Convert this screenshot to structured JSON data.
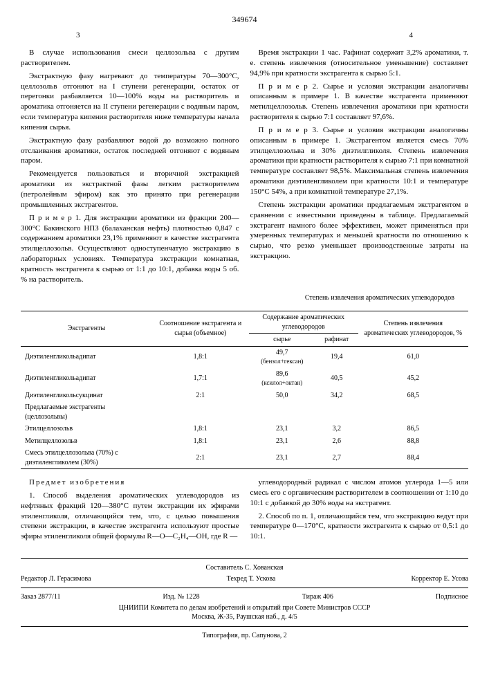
{
  "patent_number": "349674",
  "page_left": "3",
  "page_right": "4",
  "left_col": {
    "p1": "В случае использования смеси целлозольва с другим растворителем.",
    "p2": "Экстрактную фазу нагревают до температуры 70—300°С, целлозольв отгоняют на I ступени регенерации, остаток от перегонки разбавляется 10—100% воды на растворитель и ароматика отгоняется на II ступени регенерации с водяным паром, если температура кипения растворителя ниже температуры начала кипения сырья.",
    "p3": "Экстрактную фазу разбавляют водой до возможно полного отслаивания ароматики, остаток последней отгоняют с водяным паром.",
    "p4": "Рекомендуется пользоваться и вторичной экстракцией ароматики из экстрактной фазы легким растворителем (петролейным эфиром) как это принято при регенерации промышленных экстрагентов.",
    "p5": "П р и м е р 1. Для экстракции ароматики из фракции 200—300°С Бакинского НПЗ (балаханская нефть) плотностью 0,847 с содержанием ароматики 23,1% применяют в качестве экстрагента этилцеллозольв. Осуществляют одноступенчатую экстракцию в лабораторных условиях. Температура экстракции комнатная, кратность экстрагента к сырью от 1:1 до 10:1, добавка воды 5 об. % на растворитель."
  },
  "right_col": {
    "p1": "Время экстракции 1 час. Рафинат содержит 3,2% ароматики, т. е. степень извлечения (относительное уменьшение) составляет 94,9% при кратности экстрагента к сырью 5:1.",
    "p2": "П р и м е р 2. Сырье и условия экстракции аналогичны описанным в примере 1. В качестве экстрагента применяют метилцеллозольв. Степень извлечения ароматики при кратности растворителя к сырью 7:1 составляет 97,6%.",
    "p3": "П р и м е р 3. Сырье и условия экстракции аналогичны описанным в примере 1. Экстрагентом является смесь 70% этилцеллозольва и 30% диэтилгликоля. Степень извлечения ароматики при кратности растворителя к сырью 7:1 при комнатной температуре составляет 98,5%. Максимальная степень извлечения ароматики диэтиленгликолем при кратности 10:1 и температуре 150°С 54%, а при комнатной температуре 27,1%.",
    "p4": "Степень экстракции ароматики предлагаемым экстрагентом в сравнении с известными приведены в таблице. Предлагаемый экстрагент намного более эффективен, может применяться при умеренных температурах и меньшей кратности по отношению к сырью, что резко уменьшает производственные затраты на экстракцию."
  },
  "table": {
    "title": "Степень извлечения ароматических углеводородов",
    "headers": {
      "c1": "Экстрагенты",
      "c2": "Соотношение экстрагента и сырья (объемное)",
      "c3_group": "Содержание ароматических углеводородов",
      "c3a": "сырье",
      "c3b": "рафинат",
      "c4": "Степень извлечения ароматических углеводородов, %"
    },
    "rows": [
      {
        "name": "Диэтиленгликольадипат",
        "ratio": "1,8:1",
        "raw": "49,7",
        "raw_note": "(бензол+гексан)",
        "raf": "19,4",
        "deg": "61,0"
      },
      {
        "name": "Диэтиленгликольадипат",
        "ratio": "1,7:1",
        "raw": "89,6",
        "raw_note": "(ксилол+октан)",
        "raf": "40,5",
        "deg": "45,2"
      },
      {
        "name": "Диэтиленгликольсукцинат",
        "ratio": "2:1",
        "raw": "50,0",
        "raw_note": "",
        "raf": "34,2",
        "deg": "68,5"
      },
      {
        "name": "Предлагаемые экстрагенты (целлозольвы)",
        "ratio": "",
        "raw": "",
        "raw_note": "",
        "raf": "",
        "deg": ""
      },
      {
        "name": "Этилцеллозольв",
        "ratio": "1,8:1",
        "raw": "23,1",
        "raw_note": "",
        "raf": "3,2",
        "deg": "86,5"
      },
      {
        "name": "Метилцеллозольв",
        "ratio": "1,8:1",
        "raw": "23,1",
        "raw_note": "",
        "raf": "2,6",
        "deg": "88,8"
      },
      {
        "name": "Смесь этилцеллозольва (70%) с диэтиленгликолем (30%)",
        "ratio": "2:1",
        "raw": "23,1",
        "raw_note": "",
        "raf": "2,7",
        "deg": "88,4"
      }
    ]
  },
  "claims": {
    "header": "Предмет изобретения",
    "left_p1": "1. Способ выделения ароматических углеводородов из нефтяных фракций 120—380°С путем экстракции их эфирами этиленгликоля, отличающийся тем, что, с целью повышения степени экстракции, в качестве экстрагента используют простые эфиры этиленгликоля общей формулы R—O—C₂H₄—OH, где R —",
    "right_p1": "углеводородный радикал с числом атомов углерода 1—5 или смесь его с органическим растворителем в соотношении от 1:10 до 10:1 с добавкой до 30% воды на экстрагент.",
    "right_p2": "2. Способ по п. 1, отличающийся тем, что экстракцию ведут при температуре 0—170°С, кратности экстрагента к сырью от 0,5:1 до 10:1."
  },
  "footer": {
    "compiler": "Составитель С. Хованская",
    "editor": "Редактор Л. Герасимова",
    "techred": "Техред Т. Ускова",
    "corrector": "Корректор Е. Усова",
    "order": "Заказ 2877/11",
    "izd": "Изд. № 1228",
    "tiraj": "Тираж 406",
    "podpisnoe": "Подписное",
    "org": "ЦНИИПИ Комитета по делам изобретений и открытий при Совете Министров СССР",
    "addr": "Москва, Ж-35, Раушская наб., д. 4/5",
    "typo": "Типография, пр. Сапунова, 2"
  }
}
